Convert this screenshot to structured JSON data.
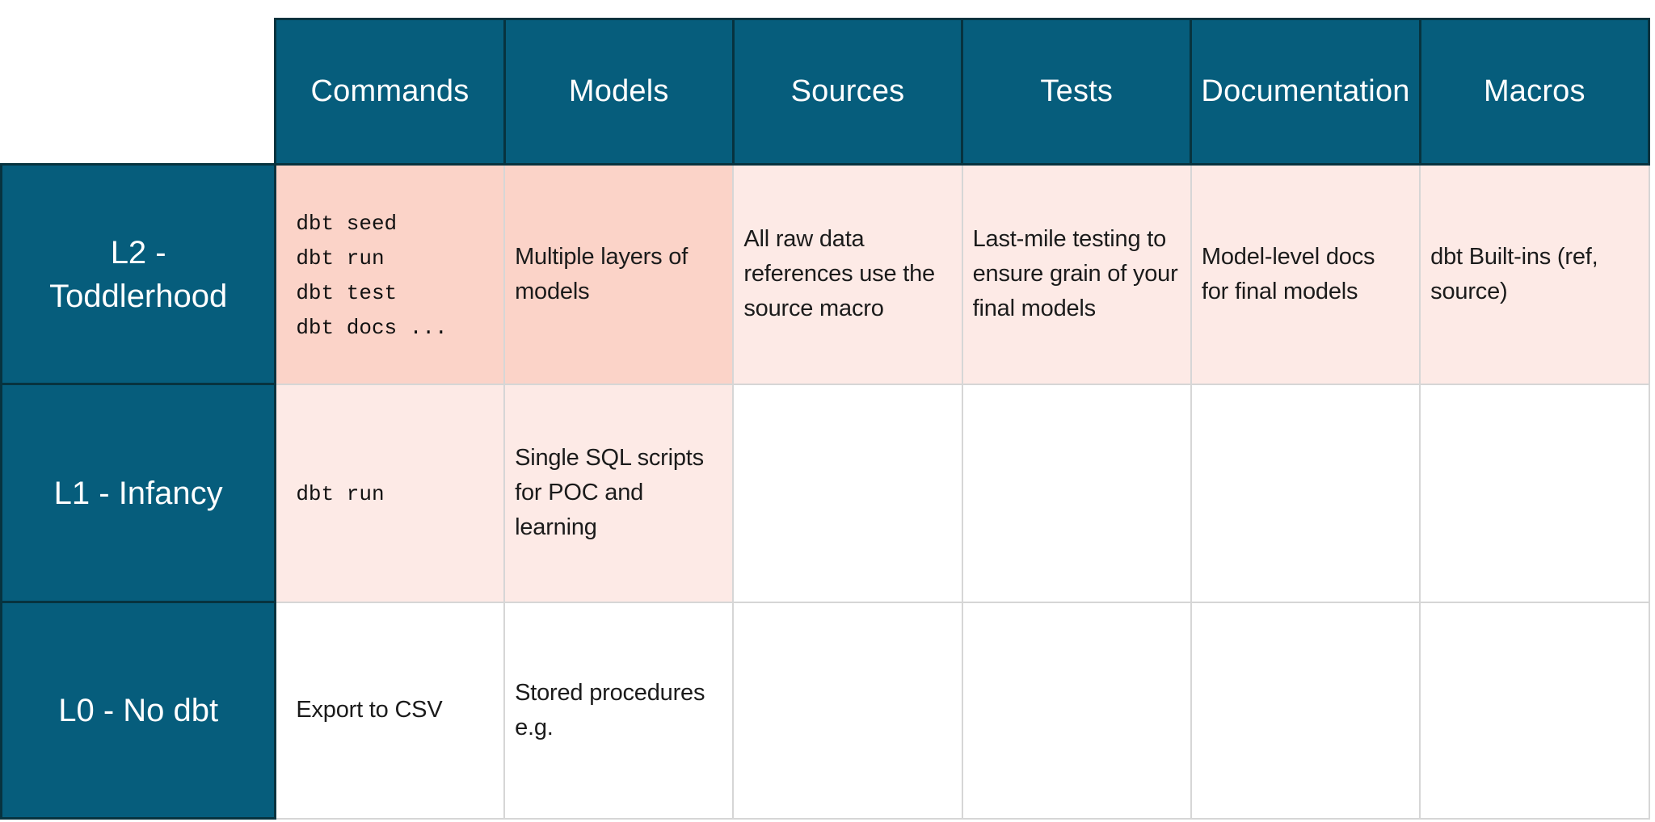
{
  "colors": {
    "teal": "#065d7c",
    "teal_border": "#07333f",
    "salmon": "#fbd3c8",
    "light_pink": "#fdeae6",
    "grid_line": "#d6d6d6",
    "body_text": "#1b1b1b",
    "header_text": "#ffffff",
    "page_bg": "#ffffff"
  },
  "table": {
    "columns": [
      "Commands",
      "Models",
      "Sources",
      "Tests",
      "Documentation",
      "Macros"
    ],
    "rows": [
      {
        "label": "L2 - Toddlerhood",
        "cells": [
          {
            "text": "dbt seed\ndbt run\ndbt test\ndbt docs ...",
            "mono": true,
            "bg": "salmon"
          },
          {
            "text": "Multiple layers of models",
            "bg": "salmon"
          },
          {
            "text": "All raw data references use the source macro",
            "bg": "light_pink"
          },
          {
            "text": "Last-mile testing to ensure grain of your final models",
            "bg": "light_pink"
          },
          {
            "text": "Model-level docs for final models",
            "bg": "light_pink"
          },
          {
            "text": "dbt Built-ins (ref, source)",
            "bg": "light_pink"
          }
        ]
      },
      {
        "label": "L1 - Infancy",
        "cells": [
          {
            "text": "dbt run",
            "mono": true,
            "bg": "light_pink"
          },
          {
            "text": "Single SQL scripts for POC and learning",
            "bg": "light_pink"
          },
          {
            "text": "",
            "bg": "white"
          },
          {
            "text": "",
            "bg": "white"
          },
          {
            "text": "",
            "bg": "white"
          },
          {
            "text": "",
            "bg": "white"
          }
        ]
      },
      {
        "label": "L0 - No dbt",
        "cells": [
          {
            "text": "Export to CSV",
            "bg": "white"
          },
          {
            "text": "Stored procedures e.g.",
            "bg": "white"
          },
          {
            "text": "",
            "bg": "white"
          },
          {
            "text": "",
            "bg": "white"
          },
          {
            "text": "",
            "bg": "white"
          },
          {
            "text": "",
            "bg": "white"
          }
        ]
      }
    ]
  }
}
